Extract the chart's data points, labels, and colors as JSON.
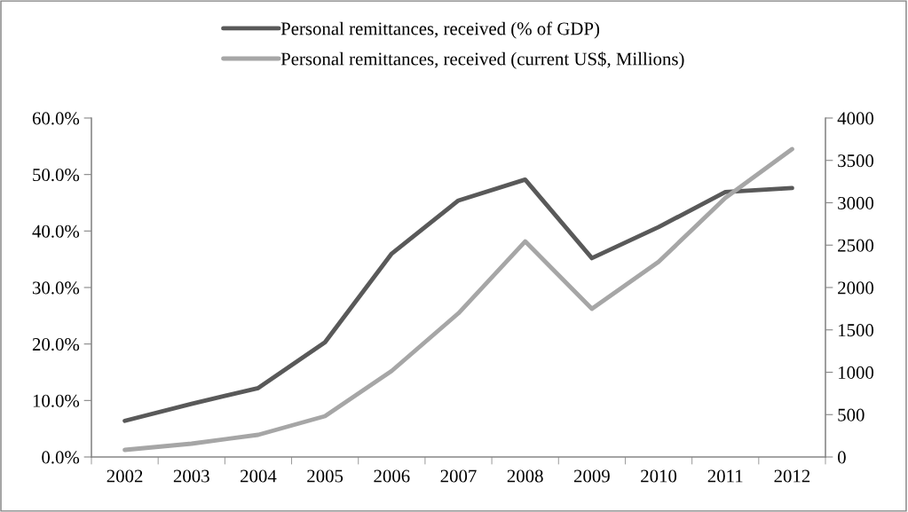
{
  "chart_data": {
    "type": "line",
    "categories": [
      "2002",
      "2003",
      "2004",
      "2005",
      "2006",
      "2007",
      "2008",
      "2009",
      "2010",
      "2011",
      "2012"
    ],
    "series": [
      {
        "name": "Personal remittances, received (% of GDP)",
        "color": "#595959",
        "values": [
          6.4,
          9.4,
          12.2,
          20.3,
          36.0,
          45.4,
          49.1,
          35.2,
          40.7,
          46.9,
          47.6
        ]
      },
      {
        "name": "Personal remittances, received (current US$, Millions)",
        "color": "#a6a6a6",
        "axis": "y2",
        "values": [
          84,
          157,
          262,
          482,
          1016,
          1696,
          2544,
          1749,
          2303,
          3057,
          3633
        ]
      }
    ],
    "ylim": [
      0,
      60
    ],
    "yticks": [
      {
        "value": 0,
        "label": "0.0%"
      },
      {
        "value": 10,
        "label": "10.0%"
      },
      {
        "value": 20,
        "label": "20.0%"
      },
      {
        "value": 30,
        "label": "30.0%"
      },
      {
        "value": 40,
        "label": "40.0%"
      },
      {
        "value": 50,
        "label": "50.0%"
      },
      {
        "value": 60,
        "label": "60.0%"
      }
    ],
    "y2lim": [
      0,
      4000
    ],
    "y2ticks": [
      0,
      500,
      1000,
      1500,
      2000,
      2500,
      3000,
      3500,
      4000
    ],
    "legend": "top",
    "grid": false,
    "marker": "none",
    "line_style": "solid"
  }
}
